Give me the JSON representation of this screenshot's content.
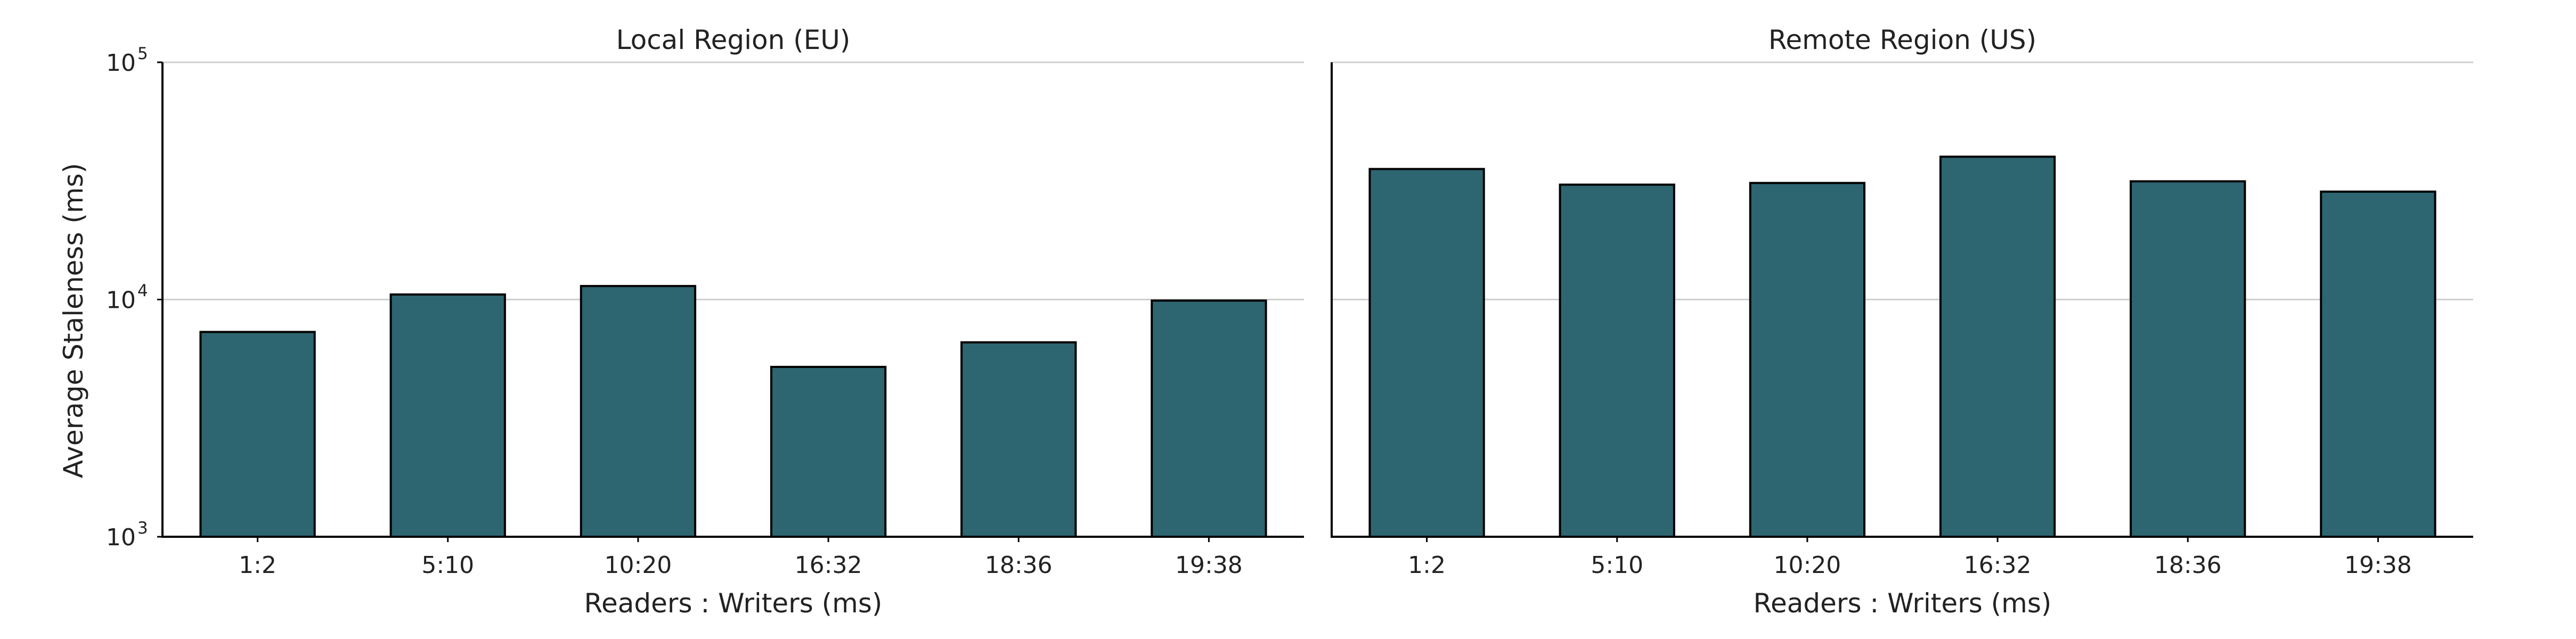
{
  "chart_data": {
    "type": "bar",
    "ylabel": "Average Staleness (ms)",
    "yscale": "log",
    "ylim": [
      1000,
      100000
    ],
    "yticks": [
      {
        "base": "10",
        "exp": "3"
      },
      {
        "base": "10",
        "exp": "4"
      },
      {
        "base": "10",
        "exp": "5"
      }
    ],
    "grid": "horizontal",
    "bar_color": "#2d6570",
    "bar_edge_color": "#000000",
    "panels": [
      {
        "title": "Local Region (EU)",
        "xlabel": "Readers : Writers (ms)",
        "categories": [
          "1:2",
          "5:10",
          "10:20",
          "16:32",
          "18:36",
          "19:38"
        ],
        "values": [
          7300,
          10500,
          11400,
          5200,
          6600,
          9900
        ]
      },
      {
        "title": "Remote Region (US)",
        "xlabel": "Readers : Writers (ms)",
        "categories": [
          "1:2",
          "5:10",
          "10:20",
          "16:32",
          "18:36",
          "19:38"
        ],
        "values": [
          35500,
          30500,
          31000,
          40000,
          31500,
          28500
        ]
      }
    ]
  }
}
